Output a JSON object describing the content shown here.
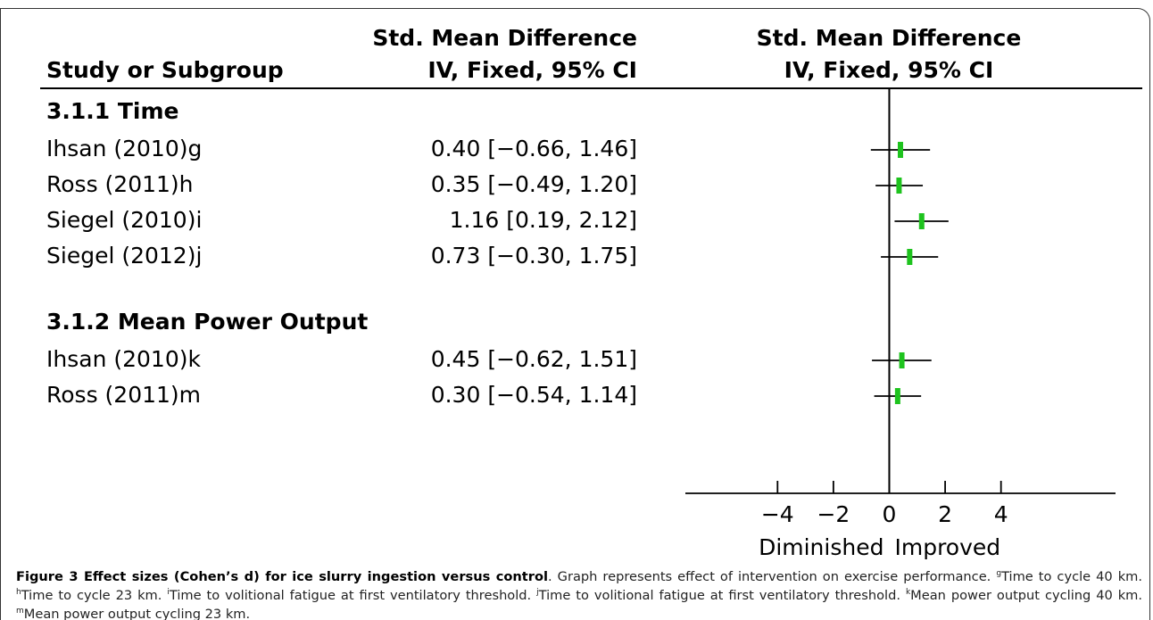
{
  "chart_data": {
    "type": "forest",
    "columns": {
      "study": "Study or Subgroup",
      "effect_top": "Std. Mean Difference",
      "effect_bottom": "IV, Fixed, 95% CI",
      "plot_top": "Std. Mean Difference",
      "plot_bottom": "IV, Fixed, 95% CI"
    },
    "groups": [
      {
        "name": "3.1.1 Time",
        "studies": [
          {
            "name": "Ihsan (2010)g",
            "value": 0.4,
            "lower": -0.66,
            "upper": 1.46,
            "label": "0.40 [−0.66, 1.46]"
          },
          {
            "name": "Ross (2011)h",
            "value": 0.35,
            "lower": -0.49,
            "upper": 1.2,
            "label": "0.35 [−0.49, 1.20]"
          },
          {
            "name": "Siegel (2010)i",
            "value": 1.16,
            "lower": 0.19,
            "upper": 2.12,
            "label": "1.16 [0.19, 2.12]"
          },
          {
            "name": "Siegel (2012)j",
            "value": 0.73,
            "lower": -0.3,
            "upper": 1.75,
            "label": "0.73 [−0.30, 1.75]"
          }
        ]
      },
      {
        "name": "3.1.2 Mean Power Output",
        "studies": [
          {
            "name": "Ihsan (2010)k",
            "value": 0.45,
            "lower": -0.62,
            "upper": 1.51,
            "label": "0.45 [−0.62, 1.51]"
          },
          {
            "name": "Ross (2011)m",
            "value": 0.3,
            "lower": -0.54,
            "upper": 1.14,
            "label": "0.30 [−0.54, 1.14]"
          }
        ]
      }
    ],
    "xlim": [
      -7.3,
      8.1
    ],
    "xticks": [
      {
        "value": -4,
        "label": "−4"
      },
      {
        "value": -2,
        "label": "−2"
      },
      0,
      2,
      4
    ],
    "xlabel_left": "Diminished",
    "xlabel_right": "Improved",
    "color": "#1ec31e"
  },
  "caption": {
    "title": "Figure 3 Effect sizes (Cohen’s d) for ice slurry ingestion versus control",
    "text": ". Graph represents effect of intervention on exercise performance.",
    "notes": [
      {
        "mark": "g",
        "text": "Time to cycle 40 km."
      },
      {
        "mark": "h",
        "text": "Time to cycle 23 km."
      },
      {
        "mark": "i",
        "text": "Time to volitional fatigue at first ventilatory threshold."
      },
      {
        "mark": "j",
        "text": "Time to volitional fatigue at first ventilatory threshold."
      },
      {
        "mark": "k",
        "text": "Mean power output cycling 40 km."
      },
      {
        "mark": "m",
        "text": "Mean power output cycling 23 km."
      }
    ]
  }
}
